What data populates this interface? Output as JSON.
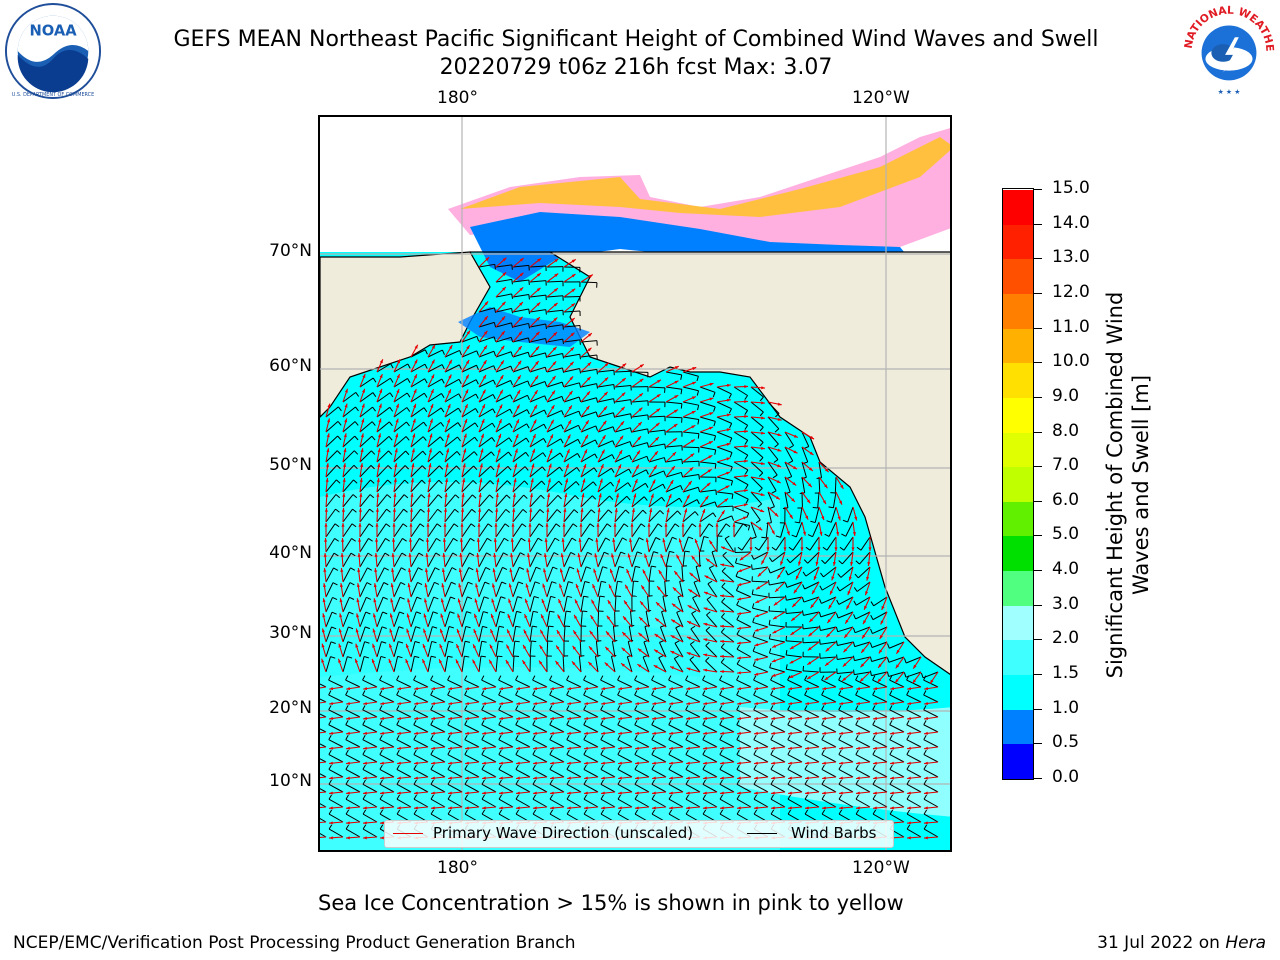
{
  "title": {
    "line1": "GEFS MEAN Northeast Pacific Significant Height of Combined Wind Waves and Swell",
    "line2": "20220729 t06z 216h fcst   Max: 3.07"
  },
  "logos": {
    "left": {
      "icon": "noaa-logo-icon",
      "text": "NOAA",
      "ring_text": "NATIONAL OCEANIC AND ATMOSPHERIC ADMINISTRATION · U.S. DEPARTMENT OF COMMERCE"
    },
    "right": {
      "icon": "nws-logo-icon",
      "ring_text": "NATIONAL WEATHER SERVICE"
    }
  },
  "map": {
    "top_lon_labels": [
      "180°",
      "120°W"
    ],
    "bottom_lon_labels": [
      "180°",
      "120°W"
    ],
    "lat_labels": [
      "70°N",
      "60°N",
      "50°N",
      "40°N",
      "30°N",
      "20°N",
      "10°N"
    ],
    "colors": {
      "land": "#efecdc",
      "ocean_default": "#00ffff",
      "coast": "#000000",
      "gridline": "#b3b3b3",
      "wave_arrow": "#e60000",
      "wind_barb": "#000000"
    },
    "legend": [
      {
        "label": "Primary Wave Direction (unscaled)",
        "color": "#e60000"
      },
      {
        "label": "Wind Barbs",
        "color": "#000000"
      }
    ]
  },
  "colorbar": {
    "title": "Significant Height of Combined Wind Waves and Swell [m]",
    "ticks": [
      "0.0",
      "0.5",
      "1.0",
      "1.5",
      "2.0",
      "3.0",
      "4.0",
      "5.0",
      "6.0",
      "7.0",
      "8.0",
      "9.0",
      "10.0",
      "11.0",
      "12.0",
      "13.0",
      "14.0",
      "15.0"
    ],
    "colors": [
      "#0000ff",
      "#0080ff",
      "#00ffff",
      "#40ffff",
      "#a0ffff",
      "#50ff80",
      "#00e000",
      "#60f000",
      "#c0ff00",
      "#e0ff00",
      "#ffff00",
      "#ffe000",
      "#ffb000",
      "#ff8000",
      "#ff5000",
      "#ff2000",
      "#ff0000"
    ]
  },
  "notes": {
    "sea_ice": "Sea Ice Concentration > 15% is shown in pink to yellow"
  },
  "footer": {
    "left": "NCEP/EMC/Verification Post Processing Product Generation Branch",
    "right_date": "31 Jul 2022 on",
    "right_machine": "Hera"
  }
}
